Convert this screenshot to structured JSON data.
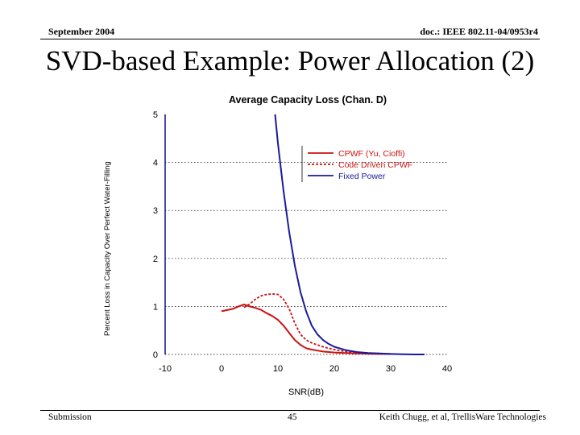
{
  "slide": {
    "header_left": "September 2004",
    "header_right": "doc.: IEEE 802.11-04/0953r4",
    "title": "SVD-based Example: Power Allocation (2)",
    "footer_left": "Submission",
    "footer_center": "45",
    "footer_right": "Keith Chugg, et al, TrellisWare Technologies"
  },
  "chart_data": {
    "type": "line",
    "title": "Average Capacity Loss (Chan. D)",
    "xlabel": "SNR(dB)",
    "ylabel": "Percent Loss in Capacity Over Perfect Water-Filling",
    "xlim": [
      -10,
      40
    ],
    "ylim": [
      0,
      5
    ],
    "xticks": [
      "-10",
      "0",
      "10",
      "20",
      "30",
      "40"
    ],
    "yticks": [
      "0",
      "1",
      "2",
      "3",
      "4",
      "5"
    ],
    "grid": "dotted horizontal",
    "legend_position": "top-right",
    "series": [
      {
        "name": "CPWF (Yu, Cioffi)",
        "color": "#cc1111",
        "style": "solid",
        "x": [
          0,
          2,
          3,
          4,
          5,
          6,
          7,
          8,
          9,
          10,
          11,
          12,
          13,
          14,
          15,
          16,
          17,
          18,
          19,
          20,
          22,
          24,
          26,
          28,
          30
        ],
        "y": [
          0.9,
          0.95,
          1.0,
          1.04,
          1.0,
          0.97,
          0.93,
          0.86,
          0.8,
          0.72,
          0.6,
          0.45,
          0.3,
          0.2,
          0.13,
          0.1,
          0.08,
          0.06,
          0.05,
          0.04,
          0.03,
          0.02,
          0.015,
          0.01,
          0.01
        ]
      },
      {
        "name": "Code Driven CPWF",
        "color": "#cc1111",
        "style": "dashed",
        "x": [
          4,
          5,
          6,
          7,
          8,
          9,
          10,
          11,
          12,
          13,
          14,
          15,
          16,
          17,
          18,
          19,
          20,
          22,
          24,
          26,
          28,
          30
        ],
        "y": [
          0.98,
          1.05,
          1.15,
          1.22,
          1.25,
          1.26,
          1.25,
          1.15,
          0.95,
          0.65,
          0.42,
          0.3,
          0.24,
          0.2,
          0.16,
          0.13,
          0.1,
          0.06,
          0.04,
          0.03,
          0.02,
          0.01
        ]
      },
      {
        "name": "Fixed Power",
        "color": "#1a1a9e",
        "style": "solid",
        "x": [
          9.5,
          10,
          11,
          12,
          13,
          14,
          15,
          16,
          17,
          18,
          19,
          20,
          22,
          24,
          26,
          28,
          30,
          32,
          34,
          36
        ],
        "y": [
          5.0,
          4.4,
          3.4,
          2.55,
          1.85,
          1.3,
          0.9,
          0.6,
          0.42,
          0.3,
          0.22,
          0.16,
          0.09,
          0.05,
          0.03,
          0.02,
          0.01,
          0.005,
          0.0,
          0.0
        ]
      }
    ]
  }
}
